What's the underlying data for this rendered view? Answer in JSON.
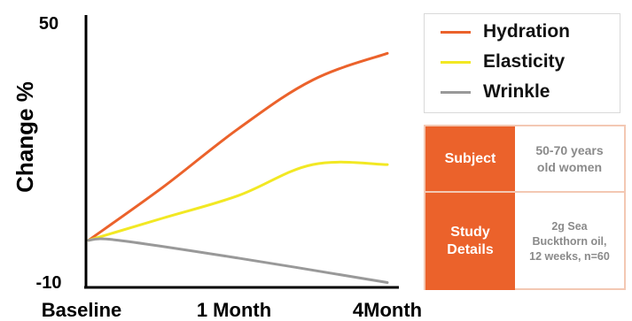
{
  "chart_data": {
    "type": "line",
    "categories": [
      "Baseline",
      "1 Month",
      "4Month"
    ],
    "ylabel": "Change %",
    "yticks": [
      "50",
      "-10"
    ],
    "ylim": [
      -10,
      50
    ],
    "series": [
      {
        "name": "Hydration",
        "color": "#eb622b",
        "x": [
          0,
          0.25,
          0.5,
          0.75,
          1.0
        ],
        "values": [
          0,
          12,
          25,
          36,
          42
        ]
      },
      {
        "name": "Elasticity",
        "color": "#f2e823",
        "x": [
          0,
          0.25,
          0.5,
          0.75,
          1.0
        ],
        "values": [
          0,
          5,
          10,
          17,
          17
        ]
      },
      {
        "name": "Wrinkle",
        "color": "#999999",
        "x": [
          0,
          0.1,
          0.5,
          1.0
        ],
        "values": [
          0,
          0,
          -4,
          -9.5
        ]
      }
    ],
    "legend": "top-right",
    "grid": false
  },
  "info": {
    "rows": [
      {
        "key": "Subject",
        "value": "50-70 years\nold women"
      },
      {
        "key": "Study\nDetails",
        "value": "2g Sea\nBuckthorn oil,\n12 weeks, n=60"
      }
    ]
  }
}
